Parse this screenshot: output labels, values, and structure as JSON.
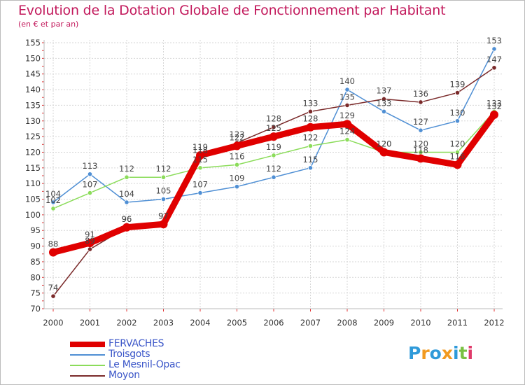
{
  "chart_data": {
    "type": "line",
    "title": "Evolution de la Dotation Globale de Fonctionnement par Habitant",
    "subtitle": "(en € et par an)",
    "categories": [
      "2000",
      "2001",
      "2002",
      "2003",
      "2004",
      "2005",
      "2006",
      "2007",
      "2008",
      "2009",
      "2010",
      "2011",
      "2012"
    ],
    "ylim": [
      70,
      155
    ],
    "yticks": [
      70,
      75,
      80,
      85,
      90,
      95,
      100,
      105,
      110,
      115,
      120,
      125,
      130,
      135,
      140,
      145,
      150,
      155
    ],
    "grid": true,
    "series": [
      {
        "name": "FERVACHES",
        "color": "#e00000",
        "emphasis": true,
        "values": [
          88,
          91,
          96,
          97,
          119,
          122,
          125,
          128,
          129,
          120,
          118,
          116,
          132
        ]
      },
      {
        "name": "Troisgots",
        "color": "#4f8fd4",
        "emphasis": false,
        "values": [
          104,
          113,
          104,
          105,
          107,
          109,
          112,
          115,
          140,
          133,
          127,
          130,
          153
        ]
      },
      {
        "name": "Le Mesnil-Opac",
        "color": "#8bdc5a",
        "emphasis": false,
        "values": [
          102,
          107,
          112,
          112,
          115,
          116,
          119,
          122,
          124,
          120,
          120,
          120,
          133
        ]
      },
      {
        "name": "Moyon",
        "color": "#7a2a2a",
        "emphasis": false,
        "values": [
          74,
          89,
          96,
          97,
          118,
          123,
          128,
          133,
          135,
          137,
          136,
          139,
          147
        ]
      }
    ]
  },
  "logo": {
    "text": "Proxiti",
    "letters": [
      {
        "char": "P",
        "color": "#2f9ad9"
      },
      {
        "char": "r",
        "color": "#f29a1f"
      },
      {
        "char": "o",
        "color": "#2f9ad9"
      },
      {
        "char": "x",
        "color": "#f29a1f"
      },
      {
        "char": "i",
        "color": "#2f9ad9"
      },
      {
        "char": "t",
        "color": "#7ac143"
      },
      {
        "char": "i",
        "color": "#e03a6a"
      }
    ]
  }
}
